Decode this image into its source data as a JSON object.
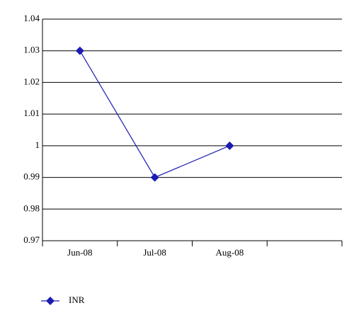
{
  "chart_data": {
    "type": "line",
    "categories": [
      "Jun-08",
      "Jul-08",
      "Aug-08",
      null
    ],
    "series": [
      {
        "name": "INR",
        "color": "#1c1cb0",
        "values": [
          1.03,
          0.99,
          1,
          null
        ]
      }
    ],
    "ylim": [
      0.97,
      1.04
    ],
    "yticks": [
      0.97,
      0.98,
      0.99,
      1,
      1.01,
      1.02,
      1.03,
      1.04
    ],
    "grid": true,
    "legend": "bottom"
  }
}
